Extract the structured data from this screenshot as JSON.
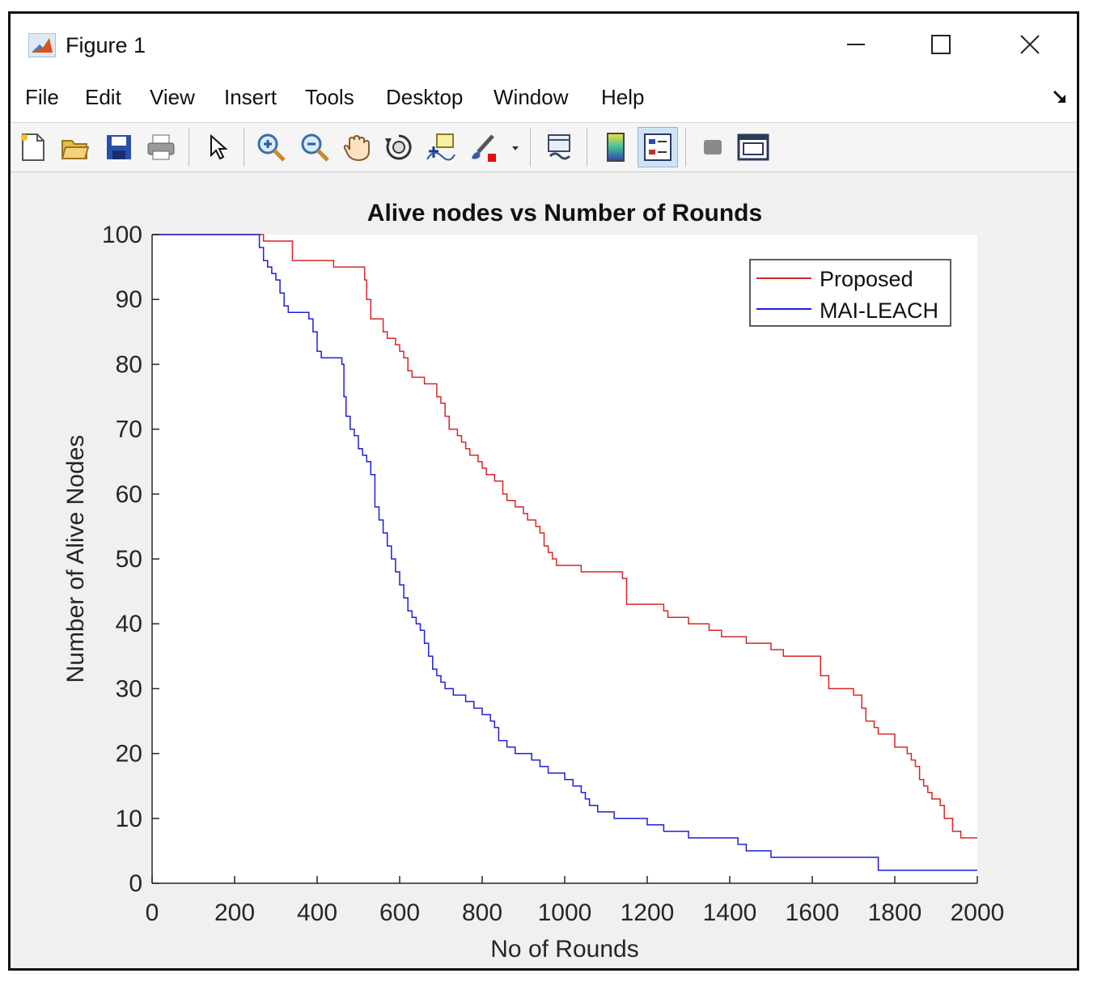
{
  "window": {
    "title": "Figure 1"
  },
  "menu": {
    "items": [
      "File",
      "Edit",
      "View",
      "Insert",
      "Tools",
      "Desktop",
      "Window",
      "Help"
    ]
  },
  "toolbar": {
    "icons": [
      "new-figure-icon",
      "open-file-icon",
      "save-icon",
      "print-icon",
      "edit-pointer-icon",
      "zoom-in-icon",
      "zoom-out-icon",
      "pan-hand-icon",
      "rotate-3d-icon",
      "data-cursor-icon",
      "brush-icon",
      "link-plot-icon",
      "colorbar-icon",
      "legend-icon",
      "hide-plot-tools-icon",
      "show-plot-tools-icon"
    ]
  },
  "colors": {
    "proposed": "#d62728",
    "mai_leach": "#1f1fd6",
    "window_bg": "#f0f0f0",
    "axes_bg": "#ffffff"
  },
  "chart_data": {
    "type": "line",
    "title": "Alive nodes vs Number of Rounds",
    "xlabel": "No of Rounds",
    "ylabel": "Number of Alive Nodes",
    "xlim": [
      0,
      2000
    ],
    "ylim": [
      0,
      100
    ],
    "xticks": [
      0,
      200,
      400,
      600,
      800,
      1000,
      1200,
      1400,
      1600,
      1800,
      2000
    ],
    "yticks": [
      0,
      10,
      20,
      30,
      40,
      50,
      60,
      70,
      80,
      90,
      100
    ],
    "legend_location": "top-right",
    "grid": false,
    "series": [
      {
        "name": "Proposed",
        "color": "#d62728",
        "x": [
          0,
          260,
          270,
          330,
          340,
          430,
          440,
          510,
          515,
          520,
          530,
          540,
          560,
          570,
          580,
          590,
          600,
          610,
          620,
          630,
          640,
          650,
          660,
          670,
          690,
          700,
          710,
          720,
          740,
          750,
          760,
          770,
          790,
          800,
          810,
          830,
          850,
          860,
          870,
          880,
          900,
          910,
          930,
          940,
          950,
          960,
          970,
          980,
          990,
          1000,
          1020,
          1040,
          1080,
          1100,
          1140,
          1150,
          1160,
          1220,
          1240,
          1250,
          1280,
          1300,
          1330,
          1350,
          1380,
          1420,
          1440,
          1470,
          1500,
          1530,
          1550,
          1600,
          1620,
          1640,
          1680,
          1700,
          1710,
          1720,
          1730,
          1750,
          1760,
          1780,
          1800,
          1810,
          1820,
          1830,
          1840,
          1850,
          1860,
          1870,
          1880,
          1890,
          1900,
          1910,
          1920,
          1940,
          1960,
          1980,
          2000
        ],
        "y": [
          100,
          100,
          99,
          99,
          96,
          96,
          95,
          95,
          93,
          90,
          87,
          87,
          85,
          84,
          84,
          83,
          82,
          81,
          79,
          78,
          78,
          78,
          77,
          77,
          75,
          74,
          72,
          70,
          69,
          68,
          67,
          66,
          65,
          64,
          63,
          62,
          60,
          59,
          59,
          58,
          57,
          56,
          55,
          54,
          52,
          51,
          50,
          49,
          49,
          49,
          49,
          48,
          48,
          48,
          47,
          43,
          43,
          43,
          42,
          41,
          41,
          40,
          40,
          39,
          38,
          38,
          37,
          37,
          36,
          35,
          35,
          35,
          32,
          30,
          30,
          29,
          29,
          27,
          25,
          24,
          23,
          23,
          21,
          21,
          21,
          20,
          19,
          18,
          16,
          15,
          14,
          13,
          13,
          12,
          10,
          8,
          7,
          7,
          7
        ]
      },
      {
        "name": "MAI-LEACH",
        "color": "#1f1fd6",
        "x": [
          0,
          255,
          260,
          270,
          280,
          290,
          300,
          310,
          320,
          330,
          340,
          350,
          380,
          390,
          400,
          410,
          420,
          460,
          465,
          470,
          480,
          490,
          500,
          510,
          520,
          530,
          540,
          550,
          560,
          570,
          580,
          590,
          600,
          610,
          620,
          630,
          640,
          650,
          660,
          670,
          680,
          690,
          700,
          710,
          720,
          730,
          740,
          750,
          760,
          780,
          800,
          820,
          830,
          840,
          860,
          870,
          880,
          890,
          900,
          920,
          940,
          960,
          980,
          1000,
          1020,
          1040,
          1050,
          1060,
          1080,
          1100,
          1120,
          1140,
          1200,
          1240,
          1260,
          1280,
          1300,
          1380,
          1420,
          1440,
          1480,
          1500,
          1600,
          1700,
          1740,
          1760,
          1800,
          1900,
          2000
        ],
        "y": [
          100,
          100,
          98,
          96,
          95,
          94,
          93,
          91,
          89,
          88,
          88,
          88,
          87,
          85,
          82,
          81,
          81,
          80,
          75,
          72,
          70,
          69,
          67,
          66,
          65,
          63,
          58,
          56,
          54,
          52,
          50,
          48,
          46,
          44,
          42,
          41,
          40,
          39,
          37,
          35,
          33,
          32,
          31,
          30,
          30,
          29,
          29,
          29,
          28,
          27,
          26,
          25,
          24,
          22,
          21,
          21,
          20,
          20,
          20,
          19,
          18,
          17,
          17,
          16,
          15,
          14,
          13,
          12,
          11,
          11,
          10,
          10,
          9,
          8,
          8,
          8,
          7,
          7,
          6,
          5,
          5,
          4,
          4,
          4,
          4,
          2,
          2,
          2,
          2
        ]
      }
    ]
  }
}
